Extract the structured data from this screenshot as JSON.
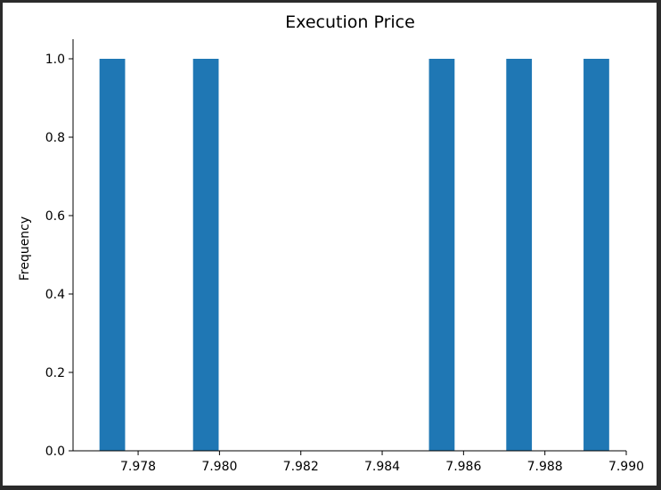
{
  "chart_data": {
    "type": "bar",
    "title": "Execution Price",
    "xlabel": "",
    "ylabel": "Frequency",
    "xlim": [
      7.9764,
      7.99
    ],
    "ylim": [
      0,
      1.05
    ],
    "bin_width": 0.00063,
    "bars": [
      {
        "x_start": 7.97705,
        "count": 1
      },
      {
        "x_start": 7.97935,
        "count": 1
      },
      {
        "x_start": 7.98515,
        "count": 1
      },
      {
        "x_start": 7.98705,
        "count": 1
      },
      {
        "x_start": 7.98895,
        "count": 1
      }
    ],
    "xticks": [
      {
        "value": 7.978,
        "label": "7.978"
      },
      {
        "value": 7.98,
        "label": "7.980"
      },
      {
        "value": 7.982,
        "label": "7.982"
      },
      {
        "value": 7.984,
        "label": "7.984"
      },
      {
        "value": 7.986,
        "label": "7.986"
      },
      {
        "value": 7.988,
        "label": "7.988"
      },
      {
        "value": 7.99,
        "label": "7.990"
      }
    ],
    "yticks": [
      {
        "value": 0.0,
        "label": "0.0"
      },
      {
        "value": 0.2,
        "label": "0.2"
      },
      {
        "value": 0.4,
        "label": "0.4"
      },
      {
        "value": 0.6,
        "label": "0.6"
      },
      {
        "value": 0.8,
        "label": "0.8"
      },
      {
        "value": 1.0,
        "label": "1.0"
      }
    ],
    "bar_color": "#1f77b4",
    "grid": false,
    "spines": [
      "left",
      "bottom"
    ]
  }
}
